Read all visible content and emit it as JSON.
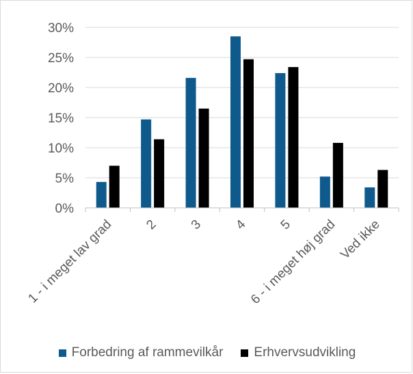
{
  "chart_data": {
    "type": "bar",
    "categories": [
      "1 - i meget lav grad",
      "2",
      "3",
      "4",
      "5",
      "6 - i meget høj grad",
      "Ved ikke"
    ],
    "series": [
      {
        "name": "Forbedring af rammevilkår",
        "color": "#0F5A8C",
        "values": [
          4.3,
          14.7,
          21.6,
          28.5,
          22.4,
          5.2,
          3.4
        ]
      },
      {
        "name": "Erhvervsudvikling",
        "color": "#000000",
        "values": [
          7.0,
          11.4,
          16.5,
          24.7,
          23.4,
          10.8,
          6.3
        ]
      }
    ],
    "yticks": [
      "0%",
      "5%",
      "10%",
      "15%",
      "20%",
      "25%",
      "30%"
    ],
    "ylim": [
      0,
      30
    ],
    "grid": true,
    "legend_position": "bottom"
  }
}
